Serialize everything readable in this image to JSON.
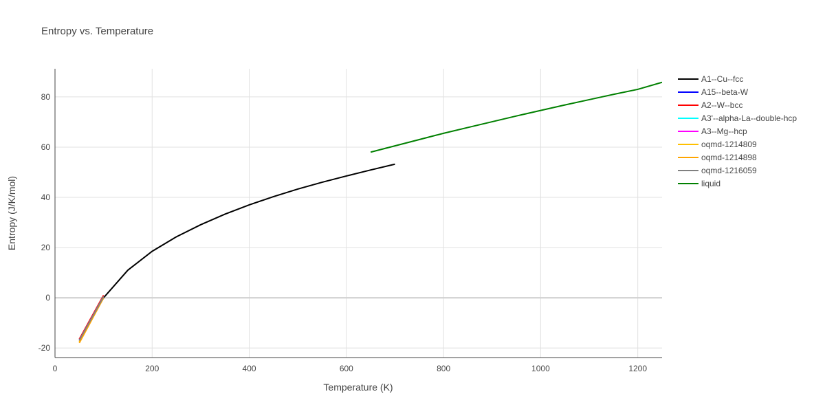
{
  "chart_data": {
    "type": "line",
    "title": "Entropy vs. Temperature",
    "x_label": "Temperature (K)",
    "y_label": "Entropy (J/K/mol)",
    "xlim": [
      0,
      1250
    ],
    "ylim": [
      -23.8,
      91.2
    ],
    "xticks": [
      0,
      200,
      400,
      600,
      800,
      1000,
      1200
    ],
    "yticks": [
      -20,
      0,
      20,
      40,
      60,
      80
    ],
    "grid": true,
    "series": [
      {
        "name": "A1--Cu--fcc",
        "color": "#000000",
        "x": [
          50,
          100,
          150,
          200,
          250,
          300,
          350,
          400,
          450,
          500,
          550,
          600,
          650,
          700
        ],
        "values": [
          -17,
          0,
          11,
          18.5,
          24.3,
          29.1,
          33.3,
          37,
          40.3,
          43.3,
          46,
          48.5,
          50.9,
          53.2
        ]
      },
      {
        "name": "A15--beta-W",
        "color": "#0000ff",
        "x": [
          50,
          100
        ],
        "values": [
          -17,
          0.5
        ]
      },
      {
        "name": "A2--W--bcc",
        "color": "#ff0000",
        "x": [
          50,
          100
        ],
        "values": [
          -16.5,
          1
        ]
      },
      {
        "name": "A3'--alpha-La--double-hcp",
        "color": "#00ffff",
        "x": [
          50,
          100
        ],
        "values": [
          -17,
          0.5
        ]
      },
      {
        "name": "A3--Mg--hcp",
        "color": "#ff00ff",
        "x": [
          50,
          100
        ],
        "values": [
          -17,
          0.5
        ]
      },
      {
        "name": "oqmd-1214809",
        "color": "#ffc000",
        "x": [
          50,
          100
        ],
        "values": [
          -17.5,
          0.5
        ]
      },
      {
        "name": "oqmd-1214898",
        "color": "#ffa500",
        "x": [
          50,
          100
        ],
        "values": [
          -18,
          0
        ]
      },
      {
        "name": "oqmd-1216059",
        "color": "#808080",
        "x": [
          50,
          100
        ],
        "values": [
          -17,
          0.5
        ]
      },
      {
        "name": "liquid",
        "color": "#008000",
        "x": [
          650,
          700,
          750,
          800,
          850,
          900,
          950,
          1000,
          1050,
          1100,
          1150,
          1200,
          1250
        ],
        "values": [
          58,
          60.5,
          63,
          65.5,
          67.8,
          70.1,
          72.4,
          74.6,
          76.8,
          78.9,
          81,
          83,
          85.8
        ]
      }
    ]
  }
}
